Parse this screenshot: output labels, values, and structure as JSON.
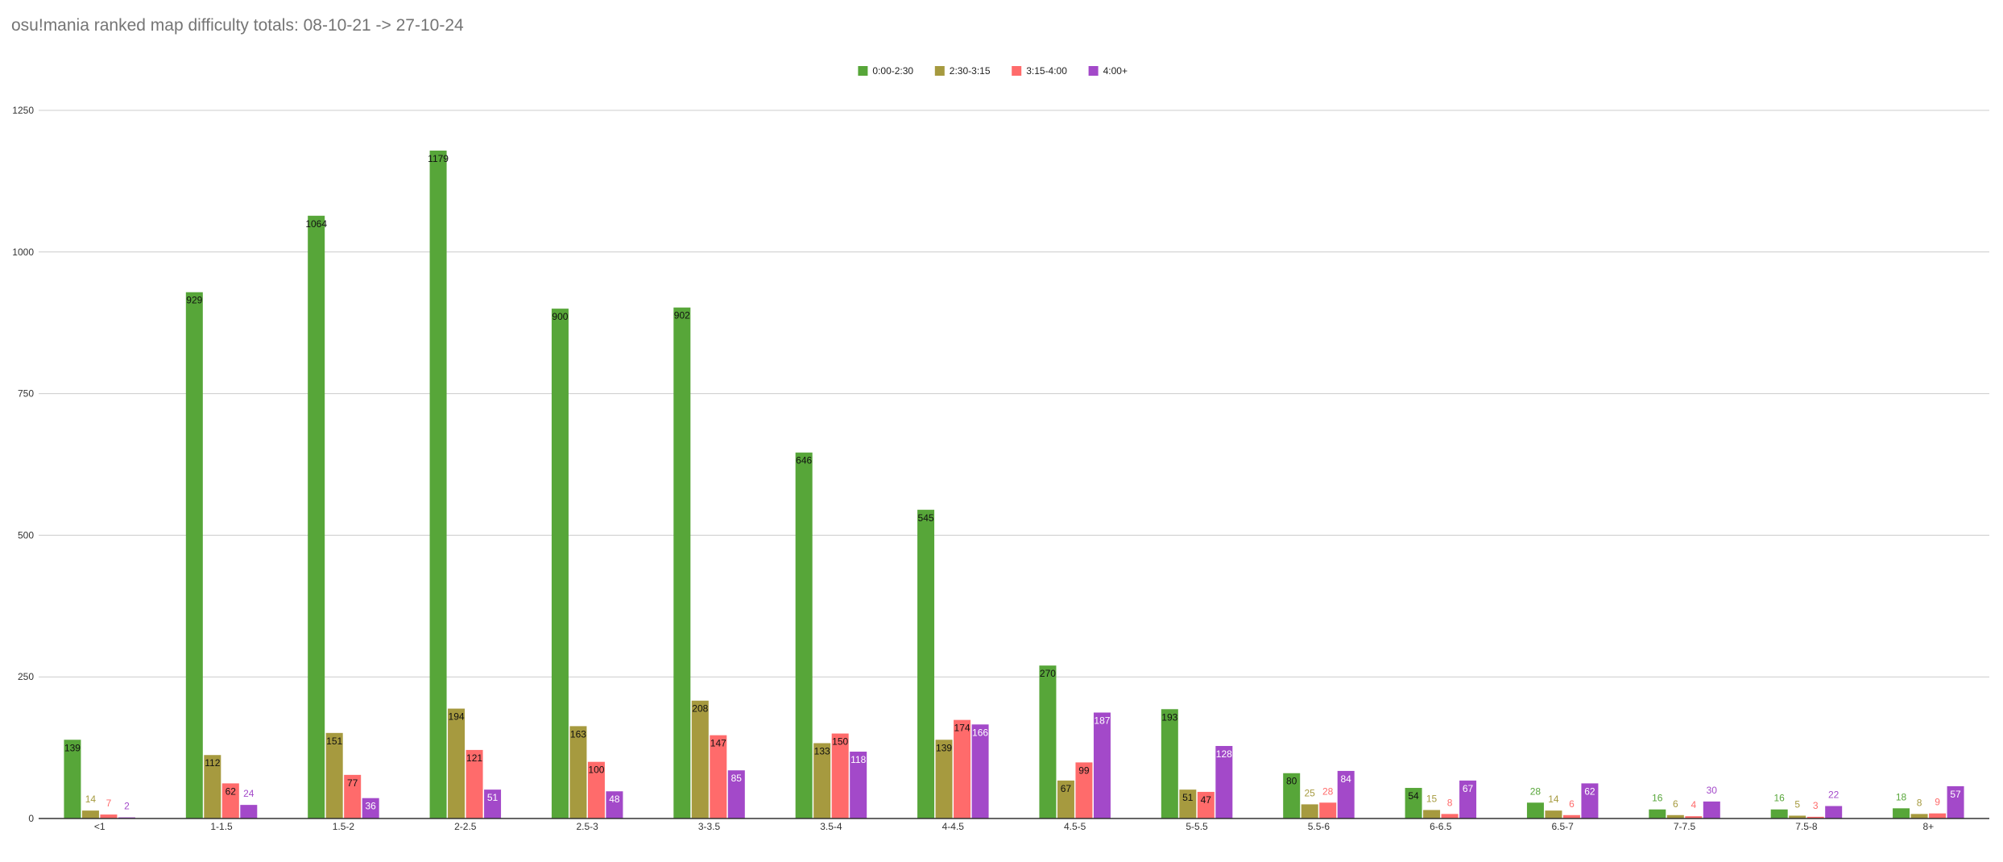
{
  "chart_data": {
    "type": "bar",
    "title": "osu!mania ranked map difficulty totals: 08-10-21 -> 27-10-24",
    "xlabel": "",
    "ylabel": "",
    "ylim": [
      0,
      1250
    ],
    "yticks": [
      0,
      250,
      500,
      750,
      1000,
      1250
    ],
    "grid": true,
    "legend_position": "top-center",
    "categories": [
      "<1",
      "1-1.5",
      "1.5-2",
      "2-2.5",
      "2.5-3",
      "3-3.5",
      "3.5-4",
      "4-4.5",
      "4.5-5",
      "5-5.5",
      "5.5-6",
      "6-6.5",
      "6.5-7",
      "7-7.5",
      "7.5-8",
      "8+"
    ],
    "series": [
      {
        "name": "0:00-2:30",
        "color": "#57a639",
        "values": [
          139,
          929,
          1064,
          1179,
          900,
          902,
          646,
          545,
          270,
          193,
          80,
          54,
          28,
          16,
          16,
          18
        ]
      },
      {
        "name": "2:30-3:15",
        "color": "#a69a3f",
        "values": [
          14,
          112,
          151,
          194,
          163,
          208,
          133,
          139,
          67,
          51,
          25,
          15,
          14,
          6,
          5,
          8
        ]
      },
      {
        "name": "3:15-4:00",
        "color": "#ff6b6b",
        "values": [
          7,
          62,
          77,
          121,
          100,
          147,
          150,
          174,
          99,
          47,
          28,
          8,
          6,
          4,
          3,
          9
        ]
      },
      {
        "name": "4:00+",
        "color": "#a349c9",
        "values": [
          2,
          24,
          36,
          51,
          48,
          85,
          118,
          166,
          187,
          128,
          84,
          67,
          62,
          30,
          22,
          57
        ]
      }
    ]
  }
}
